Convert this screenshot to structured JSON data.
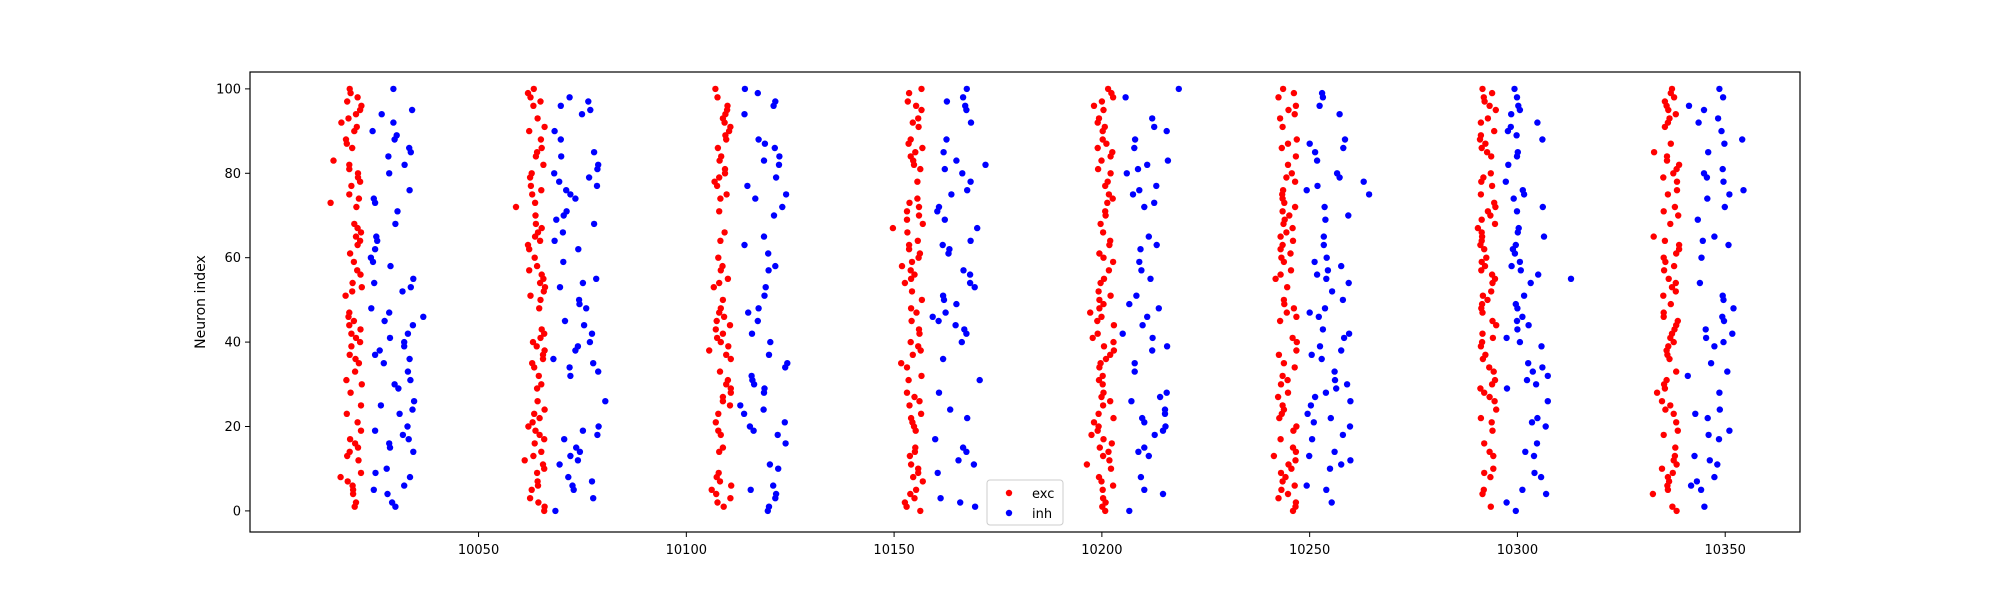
{
  "chart_data": {
    "type": "scatter",
    "title": "",
    "xlabel": "",
    "ylabel": "Neuron index",
    "xlim": [
      9995,
      10368
    ],
    "ylim": [
      -5,
      104
    ],
    "xticks": [
      10050,
      10100,
      10150,
      10200,
      10250,
      10300,
      10350
    ],
    "yticks": [
      0,
      20,
      40,
      60,
      80,
      100
    ],
    "grid": false,
    "legend_position": "bottom-center",
    "burst_starts": [
      10015,
      10059,
      10104,
      10150,
      10196,
      10240,
      10288,
      10332
    ],
    "series": [
      {
        "name": "exc",
        "color": "#ff0000",
        "x_offsets": [],
        "values": []
      },
      {
        "name": "inh",
        "color": "#0000ff",
        "x_offsets": [],
        "values": []
      }
    ]
  }
}
